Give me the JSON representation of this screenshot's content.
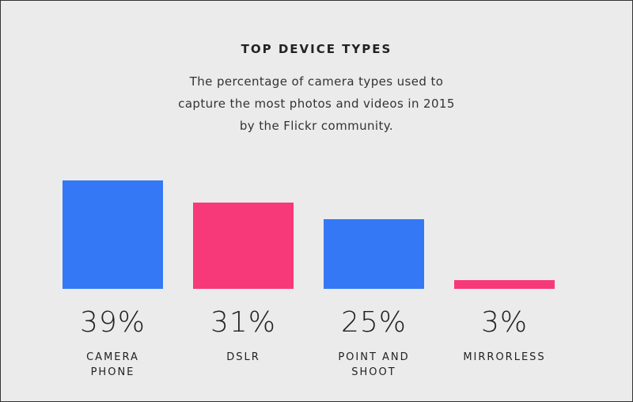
{
  "chart_data": {
    "type": "bar",
    "title": "TOP DEVICE TYPES",
    "subtitle": "The percentage of camera types used to capture the most photos and videos in 2015 by the Flickr community.",
    "categories": [
      "CAMERA PHONE",
      "DSLR",
      "POINT AND SHOOT",
      "MIRRORLESS"
    ],
    "values": [
      39,
      31,
      25,
      3
    ],
    "value_labels": [
      "39%",
      "31%",
      "25%",
      "3%"
    ],
    "colors": [
      "#3478f6",
      "#f7397a",
      "#3478f6",
      "#f7397a"
    ]
  }
}
